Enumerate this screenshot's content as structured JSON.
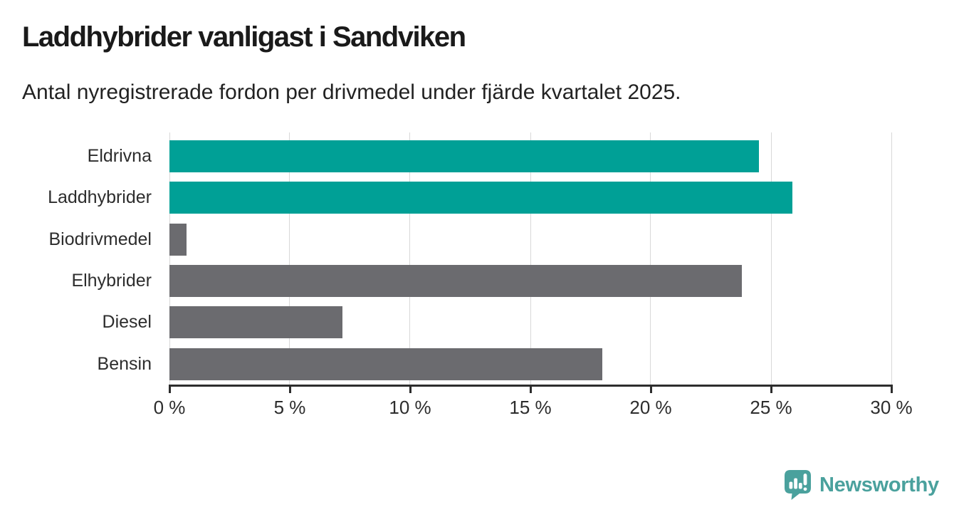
{
  "header": {
    "title": "Laddhybrider vanligast i Sandviken",
    "subtitle": "Antal nyregistrerade fordon per drivmedel under fjärde kvartalet 2025."
  },
  "chart_data": {
    "type": "bar",
    "orientation": "horizontal",
    "title": "Laddhybrider vanligast i Sandviken",
    "subtitle": "Antal nyregistrerade fordon per drivmedel under fjärde kvartalet 2025.",
    "categories": [
      "Eldrivna",
      "Laddhybrider",
      "Biodrivmedel",
      "Elhybrider",
      "Diesel",
      "Bensin"
    ],
    "values": [
      24.5,
      25.9,
      0.7,
      23.8,
      7.2,
      18.0
    ],
    "unit": "%",
    "xlim": [
      0,
      30
    ],
    "ticks": [
      {
        "value": 0,
        "label": "0 %"
      },
      {
        "value": 5,
        "label": "5 %"
      },
      {
        "value": 10,
        "label": "10 %"
      },
      {
        "value": 15,
        "label": "15 %"
      },
      {
        "value": 20,
        "label": "20 %"
      },
      {
        "value": 25,
        "label": "25 %"
      },
      {
        "value": 30,
        "label": "30 %"
      }
    ],
    "bar_colors": [
      "#00A096",
      "#00A096",
      "#6B6B6F",
      "#6B6B6F",
      "#6B6B6F",
      "#6B6B6F"
    ],
    "grid": true,
    "legend": "none"
  },
  "colors": {
    "accent_teal": "#00A096",
    "bar_gray": "#6B6B6F",
    "gridline": "#D8D8D8",
    "axis": "#2D2D2D",
    "text_dark": "#1A1A1A",
    "text_body": "#2D2D2D",
    "background": "#FFFFFF",
    "brand_teal": "#4AA19D",
    "icon_glyph": "#FFFFFF"
  },
  "branding": {
    "wordmark": "Newsworthy",
    "icon": "newsworthy-speech-bubble-bar-chart-icon"
  }
}
